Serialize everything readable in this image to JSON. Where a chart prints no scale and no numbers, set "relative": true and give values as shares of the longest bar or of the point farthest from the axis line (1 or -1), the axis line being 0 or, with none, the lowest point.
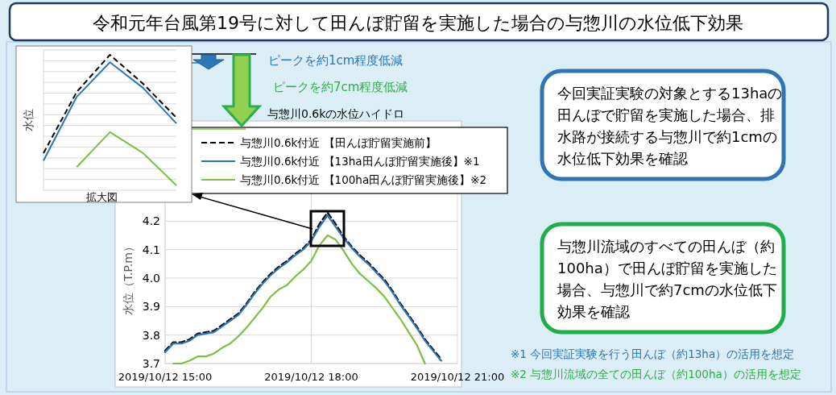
{
  "chart_data": [
    {
      "type": "line",
      "relative": true,
      "title": "令和元年台風第19号に対して田んぼ貯留を実施した場合の与惣川の水位低下効果",
      "ylabel": "水位",
      "xlabel": "拡大図",
      "grid": true,
      "categories": [
        null,
        null,
        null,
        null,
        null
      ],
      "series": [
        {
          "color": "#000000",
          "line_style": "dashed",
          "values": [
            0.274,
            0.726,
            1,
            0.786,
            0.536
          ]
        },
        {
          "color": "#2e75b6",
          "line_style": "solid",
          "values": [
            0.219,
            0.69,
            0.945,
            0.755,
            0.493
          ]
        },
        {
          "color": "#7dbf45",
          "line_style": "solid",
          "values": [
            null,
            0.171,
            0.429,
            0.274,
            0.036
          ]
        }
      ]
    },
    {
      "type": "line",
      "subtitle": "与惣川0.6kの水位ハイドロ",
      "ylabel": "水位（T.P.m）",
      "x": [
        "2019-10-12T15:00",
        "2019-10-12T15:10",
        "2019-10-12T15:20",
        "2019-10-12T15:30",
        "2019-10-12T15:40",
        "2019-10-12T15:50",
        "2019-10-12T16:00",
        "2019-10-12T16:10",
        "2019-10-12T16:20",
        "2019-10-12T16:30",
        "2019-10-12T16:40",
        "2019-10-12T16:50",
        "2019-10-12T17:00",
        "2019-10-12T17:10",
        "2019-10-12T17:20",
        "2019-10-12T17:30",
        "2019-10-12T17:40",
        "2019-10-12T17:50",
        "2019-10-12T18:00",
        "2019-10-12T18:10",
        "2019-10-12T18:20",
        "2019-10-12T18:30",
        "2019-10-12T18:40",
        "2019-10-12T18:50",
        "2019-10-12T19:00",
        "2019-10-12T19:10",
        "2019-10-12T19:20",
        "2019-10-12T19:30",
        "2019-10-12T19:40",
        "2019-10-12T19:50",
        "2019-10-12T20:00",
        "2019-10-12T20:10",
        "2019-10-12T20:20",
        "2019-10-12T20:30",
        "2019-10-12T20:40"
      ],
      "xlim": [
        "2019-10-12T15:00",
        "2019-10-12T21:00"
      ],
      "xticks": [
        {
          "value": "2019-10-12T15:00",
          "label": "2019/10/12 15:00"
        },
        {
          "value": "2019-10-12T18:00",
          "label": "2019/10/12 18:00"
        },
        {
          "value": "2019-10-12T21:00",
          "label": "2019/10/12 21:00"
        }
      ],
      "ylim": [
        3.7,
        4.3
      ],
      "yticks": [
        {
          "value": 3.7,
          "label": "3.7"
        },
        {
          "value": 3.8,
          "label": "3.8"
        },
        {
          "value": 3.9,
          "label": "3.9"
        },
        {
          "value": 4.0,
          "label": "4.0"
        },
        {
          "value": 4.1,
          "label": "4.1"
        },
        {
          "value": 4.2,
          "label": "4.2"
        }
      ],
      "grid": true,
      "legend": "top",
      "series": [
        {
          "name": "与惣川0.6k付近 【田んぼ貯留実施前】",
          "color": "#000000",
          "line_style": "dashed",
          "values": [
            3.745,
            3.775,
            3.775,
            3.785,
            3.805,
            3.81,
            3.815,
            3.835,
            3.855,
            3.875,
            3.91,
            3.95,
            3.985,
            4.015,
            4.04,
            4.06,
            4.085,
            4.105,
            4.135,
            4.19,
            4.23,
            4.19,
            4.145,
            4.11,
            4.08,
            4.055,
            4.025,
            3.995,
            3.955,
            3.91,
            3.87,
            3.83,
            3.785,
            3.75,
            3.715
          ]
        },
        {
          "name": "与惣川0.6k付近 【13ha田んぼ貯留実施後】※1",
          "color": "#2e75b6",
          "line_style": "solid",
          "values": [
            3.74,
            3.77,
            3.77,
            3.78,
            3.8,
            3.805,
            3.81,
            3.83,
            3.85,
            3.87,
            3.905,
            3.945,
            3.98,
            4.01,
            4.035,
            4.055,
            4.08,
            4.1,
            4.13,
            4.18,
            4.22,
            4.18,
            4.14,
            4.105,
            4.075,
            4.05,
            4.02,
            3.99,
            3.95,
            3.905,
            3.865,
            3.825,
            3.78,
            3.745,
            3.71
          ]
        },
        {
          "name": "与惣川0.6k付近 【100ha田んぼ貯留実施後】※2",
          "color": "#7dbf45",
          "line_style": "solid",
          "values": [
            null,
            3.7,
            3.7,
            3.71,
            3.725,
            3.725,
            3.735,
            3.755,
            3.77,
            3.795,
            3.825,
            3.86,
            3.895,
            3.935,
            3.96,
            3.975,
            4.005,
            4.03,
            4.06,
            4.115,
            4.15,
            4.135,
            4.095,
            4.05,
            4.015,
            3.99,
            3.965,
            3.935,
            3.895,
            3.855,
            3.81,
            3.765,
            3.7,
            null,
            null
          ]
        }
      ],
      "annotations": [
        "ピークを約1cm程度低減",
        "ピークを約7cm程度低減",
        "今回実証実験の対象とする13haの田んぼで貯留を実施した場合、排水路が接続する与惣川で約1cmの水位低下効果を確認",
        "与惣川流域のすべての田んぼ（約100ha）で田んぼ貯留を実施した場合、与惣川で約7cmの水位低下効果を確認",
        "※1 今回実証実験を行う田んぼ（約13ha）の活用を想定",
        "※2 与惣川流域の全ての田んぼ（約100ha）の活用を想定"
      ]
    }
  ]
}
